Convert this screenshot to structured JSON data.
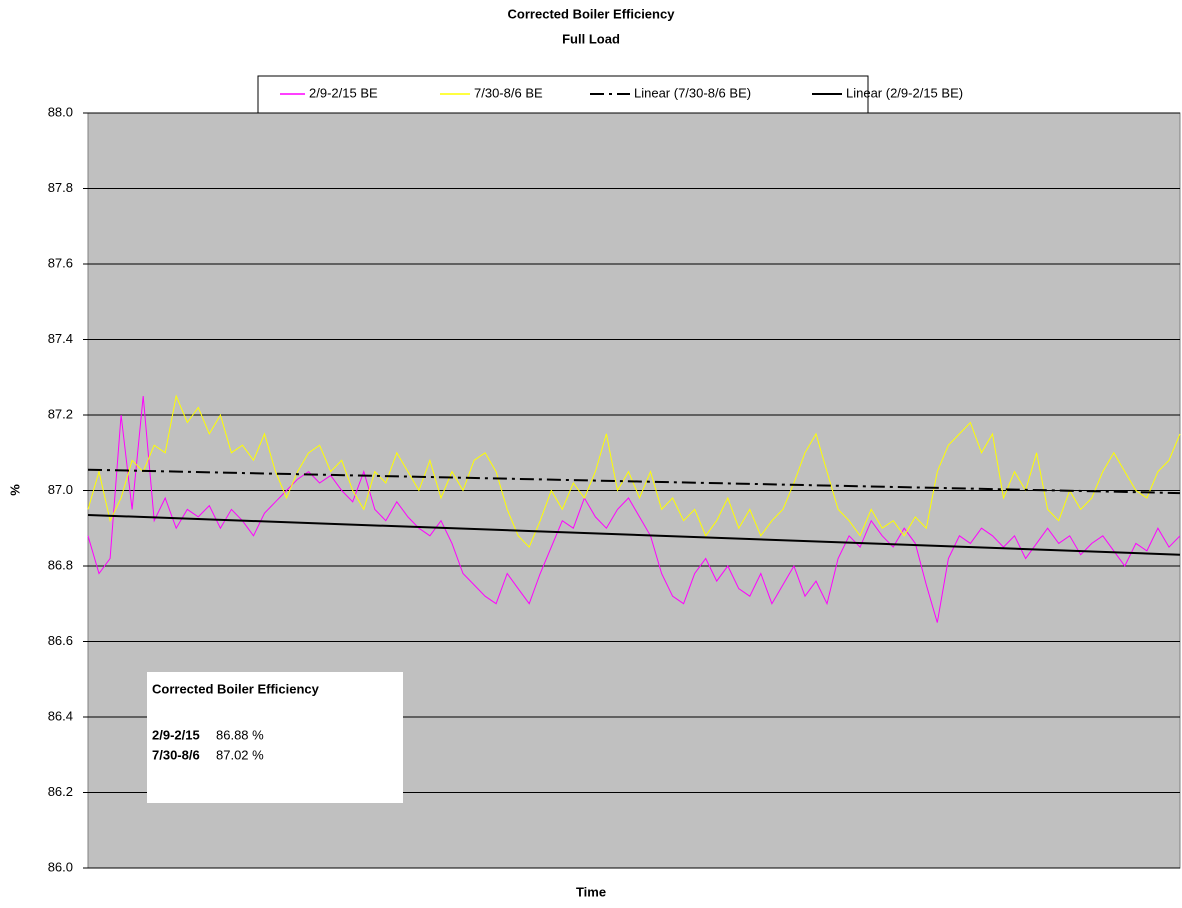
{
  "chart_data": {
    "type": "line",
    "title": "Corrected Boiler Efficiency",
    "subtitle": "Full Load",
    "x_label": "Time",
    "y_label": "%",
    "ylim": [
      86.0,
      88.0
    ],
    "yticks": [
      {
        "value": 86.0,
        "label": "86.0"
      },
      {
        "value": 86.2,
        "label": "86.2"
      },
      {
        "value": 86.4,
        "label": "86.4"
      },
      {
        "value": 86.6,
        "label": "86.6"
      },
      {
        "value": 86.8,
        "label": "86.8"
      },
      {
        "value": 87.0,
        "label": "87.0"
      },
      {
        "value": 87.2,
        "label": "87.2"
      },
      {
        "value": 87.4,
        "label": "87.4"
      },
      {
        "value": 87.6,
        "label": "87.6"
      },
      {
        "value": 87.8,
        "label": "87.8"
      },
      {
        "value": 88.0,
        "label": "88.0"
      }
    ],
    "grid": true,
    "background": "#c0c0c0",
    "series": [
      {
        "name": "2/9-2/15 BE",
        "color": "#ff00ff",
        "values": [
          86.88,
          86.78,
          86.82,
          87.2,
          86.95,
          87.25,
          86.92,
          86.98,
          86.9,
          86.95,
          86.93,
          86.96,
          86.9,
          86.95,
          86.92,
          86.88,
          86.94,
          86.97,
          87.0,
          87.03,
          87.05,
          87.02,
          87.04,
          87.0,
          86.97,
          87.05,
          86.95,
          86.92,
          86.97,
          86.93,
          86.9,
          86.88,
          86.92,
          86.86,
          86.78,
          86.75,
          86.72,
          86.7,
          86.78,
          86.74,
          86.7,
          86.78,
          86.85,
          86.92,
          86.9,
          86.98,
          86.93,
          86.9,
          86.95,
          86.98,
          86.93,
          86.88,
          86.78,
          86.72,
          86.7,
          86.78,
          86.82,
          86.76,
          86.8,
          86.74,
          86.72,
          86.78,
          86.7,
          86.75,
          86.8,
          86.72,
          86.76,
          86.7,
          86.82,
          86.88,
          86.85,
          86.92,
          86.88,
          86.85,
          86.9,
          86.86,
          86.75,
          86.65,
          86.82,
          86.88,
          86.86,
          86.9,
          86.88,
          86.85,
          86.88,
          86.82,
          86.86,
          86.9,
          86.86,
          86.88,
          86.83,
          86.86,
          86.88,
          86.84,
          86.8,
          86.86,
          86.84,
          86.9,
          86.85,
          86.88
        ]
      },
      {
        "name": "7/30-8/6 BE",
        "color": "#ffff00",
        "values": [
          86.95,
          87.05,
          86.92,
          86.98,
          87.08,
          87.05,
          87.12,
          87.1,
          87.25,
          87.18,
          87.22,
          87.15,
          87.2,
          87.1,
          87.12,
          87.08,
          87.15,
          87.05,
          86.98,
          87.05,
          87.1,
          87.12,
          87.05,
          87.08,
          87.0,
          86.95,
          87.05,
          87.02,
          87.1,
          87.05,
          87.0,
          87.08,
          86.98,
          87.05,
          87.0,
          87.08,
          87.1,
          87.05,
          86.95,
          86.88,
          86.85,
          86.92,
          87.0,
          86.95,
          87.02,
          86.98,
          87.05,
          87.15,
          87.0,
          87.05,
          86.98,
          87.05,
          86.95,
          86.98,
          86.92,
          86.95,
          86.88,
          86.92,
          86.98,
          86.9,
          86.95,
          86.88,
          86.92,
          86.95,
          87.02,
          87.1,
          87.15,
          87.05,
          86.95,
          86.92,
          86.88,
          86.95,
          86.9,
          86.92,
          86.88,
          86.93,
          86.9,
          87.05,
          87.12,
          87.15,
          87.18,
          87.1,
          87.15,
          86.98,
          87.05,
          87.0,
          87.1,
          86.95,
          86.92,
          87.0,
          86.95,
          86.98,
          87.05,
          87.1,
          87.05,
          87.0,
          86.98,
          87.05,
          87.08,
          87.15
        ]
      },
      {
        "name": "Linear (7/30-8/6 BE)",
        "color": "#000000",
        "dash": "dashdot",
        "values": [
          87.055,
          86.993
        ]
      },
      {
        "name": "Linear (2/9-2/15 BE)",
        "color": "#000000",
        "dash": "solid",
        "values": [
          86.935,
          86.83
        ]
      }
    ],
    "annotation": {
      "title": "Corrected Boiler Efficiency",
      "rows": [
        [
          "2/9-2/15",
          "86.88 %"
        ],
        [
          "7/30-8/6",
          "87.02 %"
        ]
      ]
    }
  }
}
